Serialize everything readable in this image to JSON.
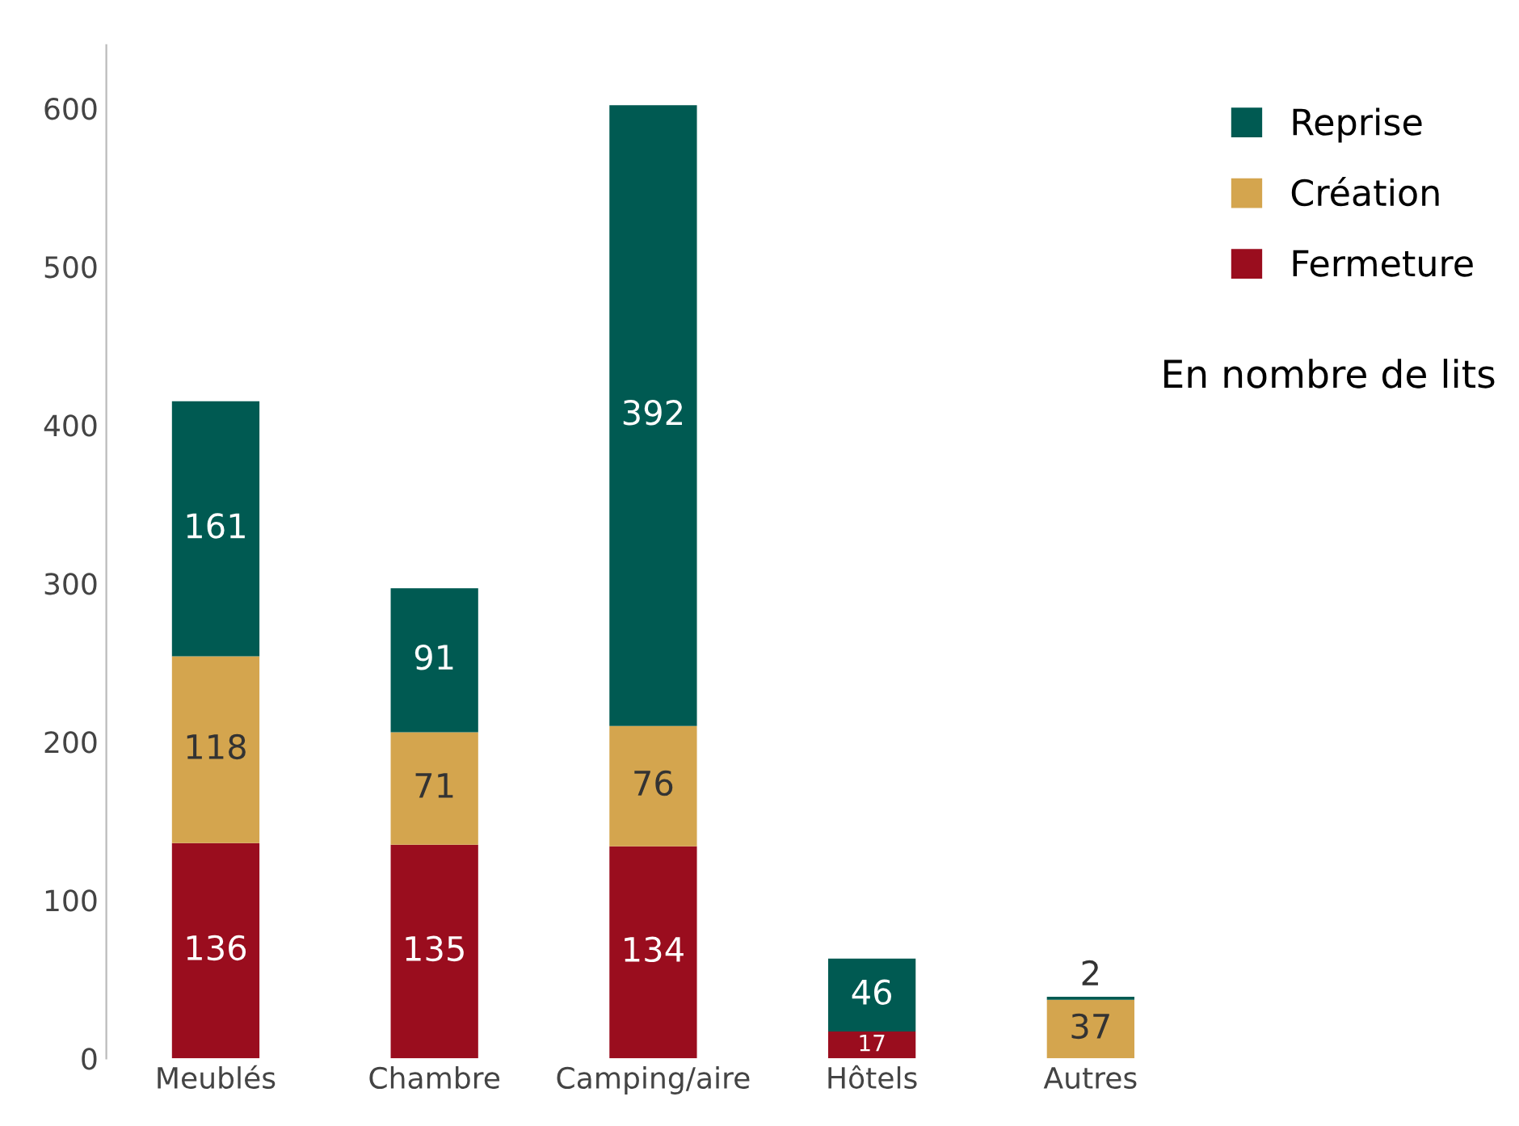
{
  "chart_data": {
    "type": "bar",
    "stacked": true,
    "categories": [
      "Meublés",
      "Chambre",
      "Camping/aire",
      "Hôtels",
      "Autres"
    ],
    "series": [
      {
        "name": "Fermeture",
        "color": "#9a0d1e",
        "values": [
          136,
          135,
          134,
          17,
          null
        ]
      },
      {
        "name": "Création",
        "color": "#d4a54e",
        "values": [
          118,
          71,
          76,
          null,
          37
        ]
      },
      {
        "name": "Reprise",
        "color": "#005a52",
        "values": [
          161,
          91,
          392,
          46,
          2
        ]
      }
    ],
    "ylim": [
      0,
      640
    ],
    "yticks": [
      0,
      100,
      200,
      300,
      400,
      500,
      600
    ],
    "data_labels": true,
    "grid": false,
    "legend": "top right",
    "annotations": [
      "En nombre de lits"
    ]
  }
}
